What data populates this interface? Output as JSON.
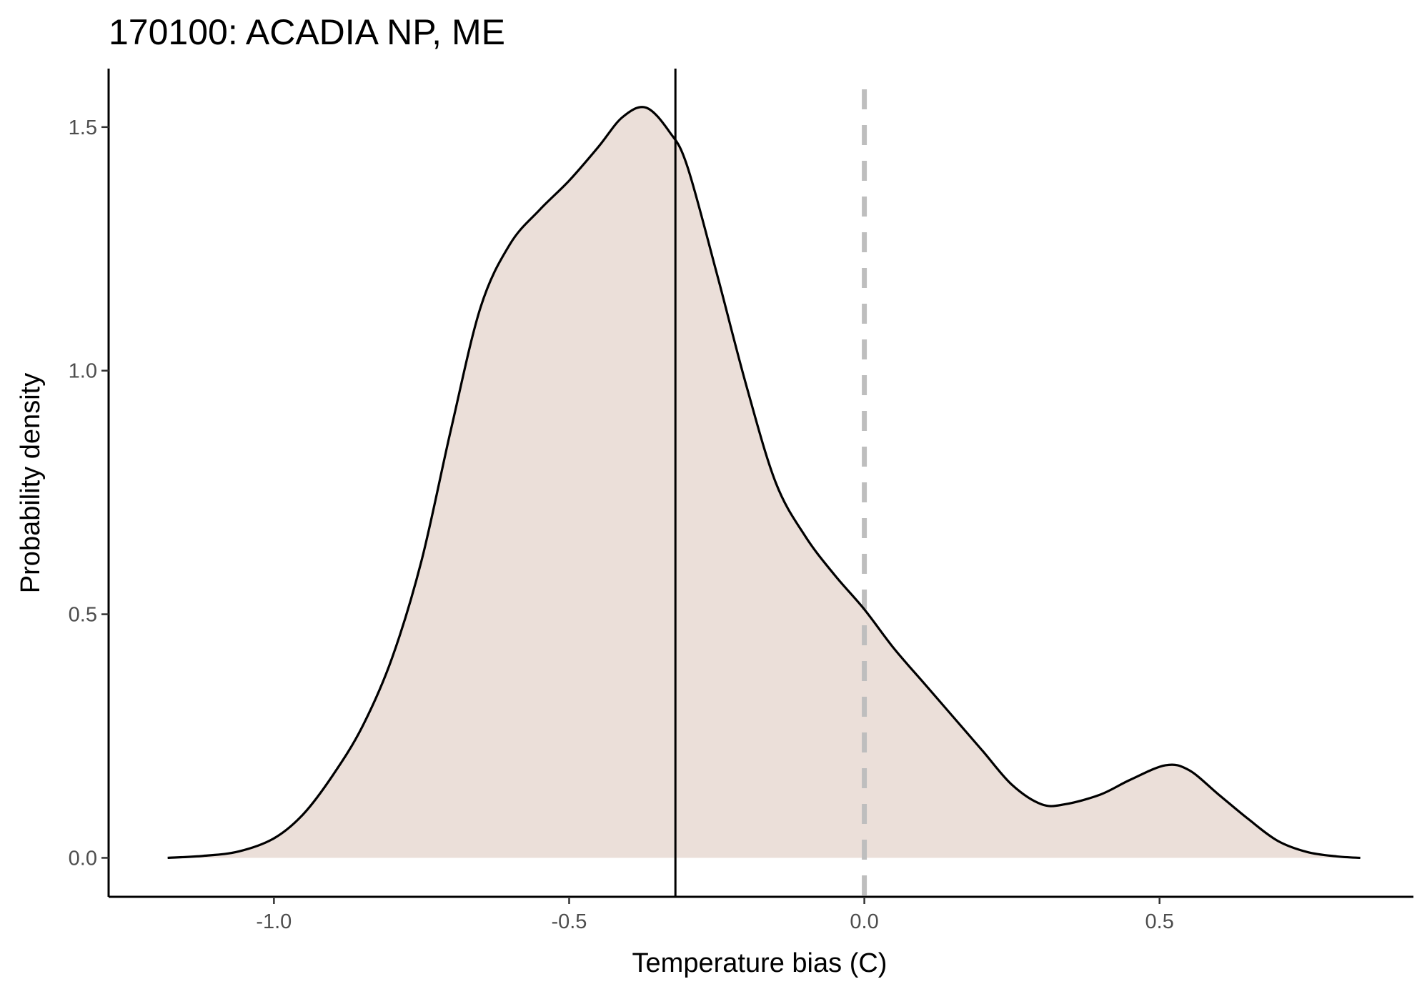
{
  "chart_data": {
    "type": "area",
    "title": "170100: ACADIA NP, ME",
    "xlabel": "Temperature bias (C)",
    "ylabel": "Probability density",
    "xlim": [
      -1.28,
      0.93
    ],
    "ylim": [
      -0.08,
      1.62
    ],
    "x_ticks": [
      -1.0,
      -0.5,
      0.0,
      0.5
    ],
    "x_tick_labels": [
      "-1.0",
      "-0.5",
      "0.0",
      "0.5"
    ],
    "y_ticks": [
      0.0,
      0.5,
      1.0,
      1.5
    ],
    "y_tick_labels": [
      "0.0",
      "0.5",
      "1.0",
      "1.5"
    ],
    "grid": false,
    "legend": "none",
    "colors": {
      "fill": "#ebdfd9",
      "curve": "#000000",
      "reference_line": "#bebebe",
      "mean_line": "#000000"
    },
    "reference_lines": [
      {
        "x": 0.0,
        "style": "dashed",
        "color": "#bebebe"
      },
      {
        "x": -0.32,
        "style": "solid",
        "color": "#000000"
      }
    ],
    "series": [
      {
        "x": [
          -1.18,
          -1.12,
          -1.06,
          -1.0,
          -0.95,
          -0.9,
          -0.85,
          -0.8,
          -0.75,
          -0.7,
          -0.65,
          -0.6,
          -0.55,
          -0.5,
          -0.45,
          -0.41,
          -0.37,
          -0.33,
          -0.3,
          -0.25,
          -0.2,
          -0.15,
          -0.1,
          -0.05,
          0.0,
          0.05,
          0.1,
          0.15,
          0.2,
          0.25,
          0.3,
          0.34,
          0.4,
          0.45,
          0.51,
          0.55,
          0.6,
          0.65,
          0.7,
          0.75,
          0.8,
          0.84
        ],
        "y": [
          0.0,
          0.004,
          0.013,
          0.04,
          0.09,
          0.17,
          0.27,
          0.41,
          0.61,
          0.88,
          1.13,
          1.26,
          1.33,
          1.39,
          1.46,
          1.52,
          1.54,
          1.49,
          1.42,
          1.2,
          0.97,
          0.77,
          0.66,
          0.58,
          0.51,
          0.43,
          0.36,
          0.29,
          0.22,
          0.15,
          0.11,
          0.11,
          0.13,
          0.16,
          0.19,
          0.18,
          0.13,
          0.08,
          0.035,
          0.012,
          0.003,
          0.0
        ]
      }
    ]
  }
}
